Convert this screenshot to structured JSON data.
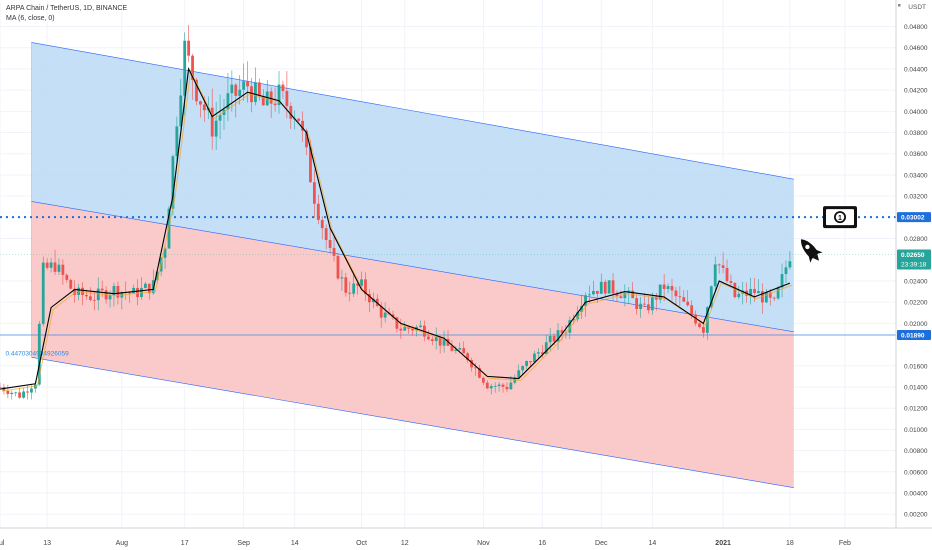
{
  "header": {
    "symbol_line": "ARPA Chain / TetherUS, 1D, BINANCE",
    "indicator_line": "MA (6, close, 0)",
    "currency": "USDT"
  },
  "colors": {
    "upper_channel_fill": "#bfdcf5",
    "lower_channel_fill": "#f9c4c4",
    "channel_line": "#2962ff",
    "candle_up": "#26a69a",
    "candle_down": "#ef5350",
    "ma_line": "#000000",
    "ma_secondary": "#f5a623",
    "resistance_line": "#1e6fd9",
    "support_line": "#3d8ae6",
    "price_badge": "#26a69a",
    "level_badge": "#1e6fd9"
  },
  "chart_data": {
    "type": "candlestick",
    "title": "ARPA Chain / TetherUS, 1D, BINANCE",
    "y_axis": {
      "ticks": [
        "0.04800",
        "0.04600",
        "0.04400",
        "0.04200",
        "0.04000",
        "0.03800",
        "0.03600",
        "0.03400",
        "0.03200",
        "0.02800",
        "0.02400",
        "0.02200",
        "0.02000",
        "0.01600",
        "0.01400",
        "0.01200",
        "0.01000",
        "0.00800",
        "0.00600",
        "0.00400",
        "0.00200"
      ],
      "range": [
        0.0007,
        0.0505
      ]
    },
    "x_axis": {
      "ticks": [
        "Jul",
        "13",
        "Aug",
        "17",
        "Sep",
        "14",
        "Oct",
        "12",
        "Nov",
        "16",
        "Dec",
        "14",
        "2021",
        "18",
        "Feb"
      ],
      "range": [
        "2020-07-01",
        "2021-02-14"
      ]
    },
    "levels": {
      "resistance": "0.03002",
      "support": "0.01890",
      "current_price": "0.02650",
      "countdown": "23:39:18"
    },
    "fib_label": "0.4470304904926059",
    "icons": [
      "dollar-banknote-icon",
      "rocket-icon"
    ],
    "close_series": [
      [
        "2020-07-01",
        0.014
      ],
      [
        "2020-07-06",
        0.0132
      ],
      [
        "2020-07-10",
        0.0145
      ],
      [
        "2020-07-12",
        0.025
      ],
      [
        "2020-07-15",
        0.0255
      ],
      [
        "2020-07-20",
        0.0228
      ],
      [
        "2020-07-25",
        0.0225
      ],
      [
        "2020-07-30",
        0.0232
      ],
      [
        "2020-08-04",
        0.0228
      ],
      [
        "2020-08-09",
        0.0236
      ],
      [
        "2020-08-12",
        0.0275
      ],
      [
        "2020-08-15",
        0.0395
      ],
      [
        "2020-08-17",
        0.046
      ],
      [
        "2020-08-20",
        0.042
      ],
      [
        "2020-08-24",
        0.0385
      ],
      [
        "2020-08-28",
        0.041
      ],
      [
        "2020-09-02",
        0.0425
      ],
      [
        "2020-09-06",
        0.0405
      ],
      [
        "2020-09-10",
        0.0415
      ],
      [
        "2020-09-15",
        0.0395
      ],
      [
        "2020-09-19",
        0.032
      ],
      [
        "2020-09-23",
        0.0265
      ],
      [
        "2020-09-27",
        0.0232
      ],
      [
        "2020-10-01",
        0.0235
      ],
      [
        "2020-10-06",
        0.021
      ],
      [
        "2020-10-11",
        0.0195
      ],
      [
        "2020-10-16",
        0.0196
      ],
      [
        "2020-10-22",
        0.018
      ],
      [
        "2020-10-28",
        0.0168
      ],
      [
        "2020-11-02",
        0.0142
      ],
      [
        "2020-11-07",
        0.014
      ],
      [
        "2020-11-12",
        0.0162
      ],
      [
        "2020-11-17",
        0.018
      ],
      [
        "2020-11-22",
        0.0195
      ],
      [
        "2020-11-27",
        0.023
      ],
      [
        "2020-12-02",
        0.0235
      ],
      [
        "2020-12-07",
        0.0228
      ],
      [
        "2020-12-12",
        0.0212
      ],
      [
        "2020-12-17",
        0.0235
      ],
      [
        "2020-12-22",
        0.0218
      ],
      [
        "2020-12-27",
        0.0195
      ],
      [
        "2020-12-30",
        0.0262
      ],
      [
        "2021-01-04",
        0.0225
      ],
      [
        "2021-01-09",
        0.023
      ],
      [
        "2021-01-14",
        0.0218
      ],
      [
        "2021-01-18",
        0.0265
      ]
    ],
    "ma_series": [
      [
        "2020-07-01",
        0.0138
      ],
      [
        "2020-07-10",
        0.0143
      ],
      [
        "2020-07-14",
        0.0215
      ],
      [
        "2020-07-20",
        0.0232
      ],
      [
        "2020-07-30",
        0.0228
      ],
      [
        "2020-08-09",
        0.0232
      ],
      [
        "2020-08-14",
        0.032
      ],
      [
        "2020-08-18",
        0.044
      ],
      [
        "2020-08-24",
        0.0395
      ],
      [
        "2020-09-02",
        0.0418
      ],
      [
        "2020-09-10",
        0.041
      ],
      [
        "2020-09-17",
        0.038
      ],
      [
        "2020-09-23",
        0.029
      ],
      [
        "2020-10-01",
        0.0232
      ],
      [
        "2020-10-11",
        0.02
      ],
      [
        "2020-10-22",
        0.0186
      ],
      [
        "2020-11-02",
        0.015
      ],
      [
        "2020-11-10",
        0.0148
      ],
      [
        "2020-11-20",
        0.0185
      ],
      [
        "2020-11-27",
        0.022
      ],
      [
        "2020-12-07",
        0.023
      ],
      [
        "2020-12-17",
        0.0225
      ],
      [
        "2020-12-27",
        0.02
      ],
      [
        "2020-12-31",
        0.024
      ],
      [
        "2021-01-09",
        0.0225
      ],
      [
        "2021-01-18",
        0.0238
      ]
    ]
  }
}
